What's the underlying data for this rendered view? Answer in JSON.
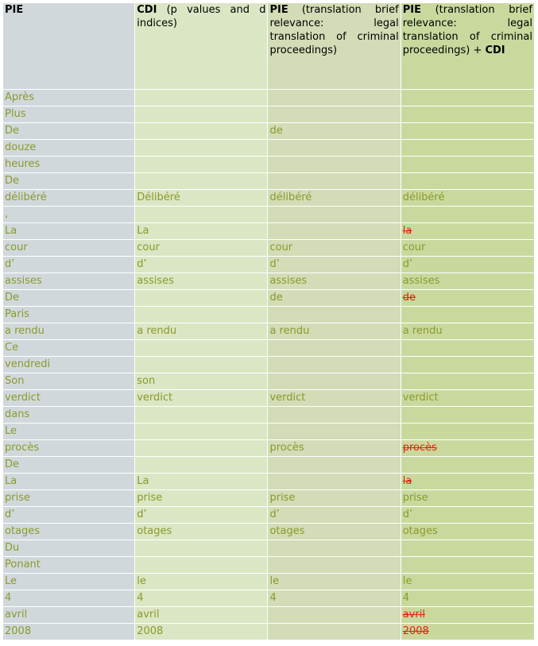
{
  "headers": [
    {
      "bold": "PIE",
      "rest": ""
    },
    {
      "bold": "CDI",
      "rest": " (p values and d indices)"
    },
    {
      "bold": "PIE",
      "rest": " (translation brief relevance: legal translation of criminal proceedings)"
    },
    {
      "bold": "PIE",
      "rest": " (translation brief relevance: legal translation of criminal proceedings) + ",
      "bold2": "CDI"
    }
  ],
  "rows": [
    [
      "Après",
      "",
      "",
      ""
    ],
    [
      "Plus",
      "",
      "",
      ""
    ],
    [
      "De",
      "",
      "de",
      ""
    ],
    [
      "douze",
      "",
      "",
      ""
    ],
    [
      "heures",
      "",
      "",
      ""
    ],
    [
      "De",
      "",
      "",
      ""
    ],
    [
      "délibéré",
      "Délibéré",
      "délibéré",
      "délibéré"
    ],
    [
      ",",
      "",
      "",
      ""
    ],
    [
      "La",
      "La",
      "",
      "la"
    ],
    [
      "cour",
      "cour",
      "cour",
      "cour"
    ],
    [
      "d’",
      "d’",
      "d’",
      "d’"
    ],
    [
      "assises",
      "assises",
      "assises",
      "assises"
    ],
    [
      "De",
      "",
      "de",
      "de"
    ],
    [
      "Paris",
      "",
      "",
      ""
    ],
    [
      "a rendu",
      "a rendu",
      "a rendu",
      "a rendu"
    ],
    [
      "Ce",
      "",
      "",
      ""
    ],
    [
      "vendredi",
      "",
      "",
      ""
    ],
    [
      "Son",
      "son",
      "",
      ""
    ],
    [
      "verdict",
      "verdict",
      "verdict",
      "verdict"
    ],
    [
      "dans",
      "",
      "",
      ""
    ],
    [
      "Le",
      "",
      "",
      ""
    ],
    [
      "procès",
      "",
      "procès",
      "procès"
    ],
    [
      "De",
      "",
      "",
      ""
    ],
    [
      "La",
      "La",
      "",
      "la"
    ],
    [
      "prise",
      "prise",
      "prise",
      "prise"
    ],
    [
      "d’",
      "d’",
      "d’",
      "d’"
    ],
    [
      "otages",
      "otages",
      "otages",
      "otages"
    ],
    [
      "Du",
      "",
      "",
      ""
    ],
    [
      "Ponant",
      "",
      "",
      ""
    ],
    [
      "Le",
      "le",
      "le",
      "le"
    ],
    [
      "4",
      "4",
      "4",
      "4"
    ],
    [
      "avril",
      "avril",
      "",
      "avril"
    ],
    [
      "2008",
      "2008",
      "",
      "2008"
    ]
  ],
  "struck_rows_col4": [
    8,
    12,
    21,
    23,
    31,
    32
  ],
  "colors": {
    "text": "#8a9a2a",
    "struck": "#e8200c",
    "col1": "#d1d8dc",
    "col2": "#dbe6c4",
    "col3": "#d2dcb6",
    "col4": "#c9d99e"
  }
}
